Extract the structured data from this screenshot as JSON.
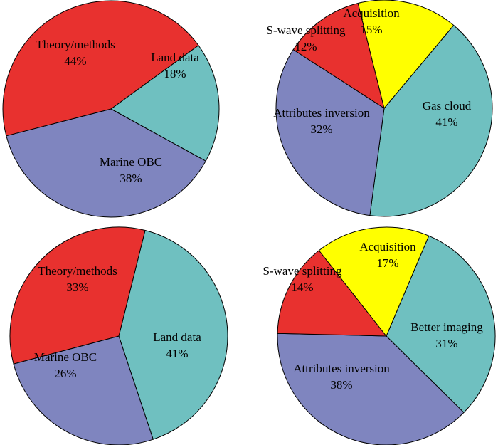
{
  "chart_data": [
    {
      "type": "pie",
      "slices": [
        {
          "label": "Land data",
          "value": 18,
          "pct": "18%",
          "color": "#6fc0c0"
        },
        {
          "label": "Marine OBC",
          "value": 38,
          "pct": "38%",
          "color": "#7f85bf"
        },
        {
          "label": "Theory/methods",
          "value": 44,
          "pct": "44%",
          "color": "#e8312f"
        }
      ]
    },
    {
      "type": "pie",
      "slices": [
        {
          "label": "Gas cloud",
          "value": 41,
          "pct": "41%",
          "color": "#6fc0c0"
        },
        {
          "label": "Attributes inversion",
          "value": 32,
          "pct": "32%",
          "color": "#7f85bf"
        },
        {
          "label": "S-wave splitting",
          "value": 12,
          "pct": "12%",
          "color": "#e8312f"
        },
        {
          "label": "Acquisition",
          "value": 15,
          "pct": "15%",
          "color": "#ffff00"
        }
      ]
    },
    {
      "type": "pie",
      "slices": [
        {
          "label": "Land data",
          "value": 41,
          "pct": "41%",
          "color": "#6fc0c0"
        },
        {
          "label": "Marine OBC",
          "value": 26,
          "pct": "26%",
          "color": "#7f85bf"
        },
        {
          "label": "Theory/methods",
          "value": 33,
          "pct": "33%",
          "color": "#e8312f"
        }
      ]
    },
    {
      "type": "pie",
      "slices": [
        {
          "label": "Better imaging",
          "value": 31,
          "pct": "31%",
          "color": "#6fc0c0"
        },
        {
          "label": "Attributes inversion",
          "value": 38,
          "pct": "38%",
          "color": "#7f85bf"
        },
        {
          "label": "S-wave splitting",
          "value": 14,
          "pct": "14%",
          "color": "#e8312f"
        },
        {
          "label": "Acquisition",
          "value": 17,
          "pct": "17%",
          "color": "#ffff00"
        }
      ]
    }
  ]
}
